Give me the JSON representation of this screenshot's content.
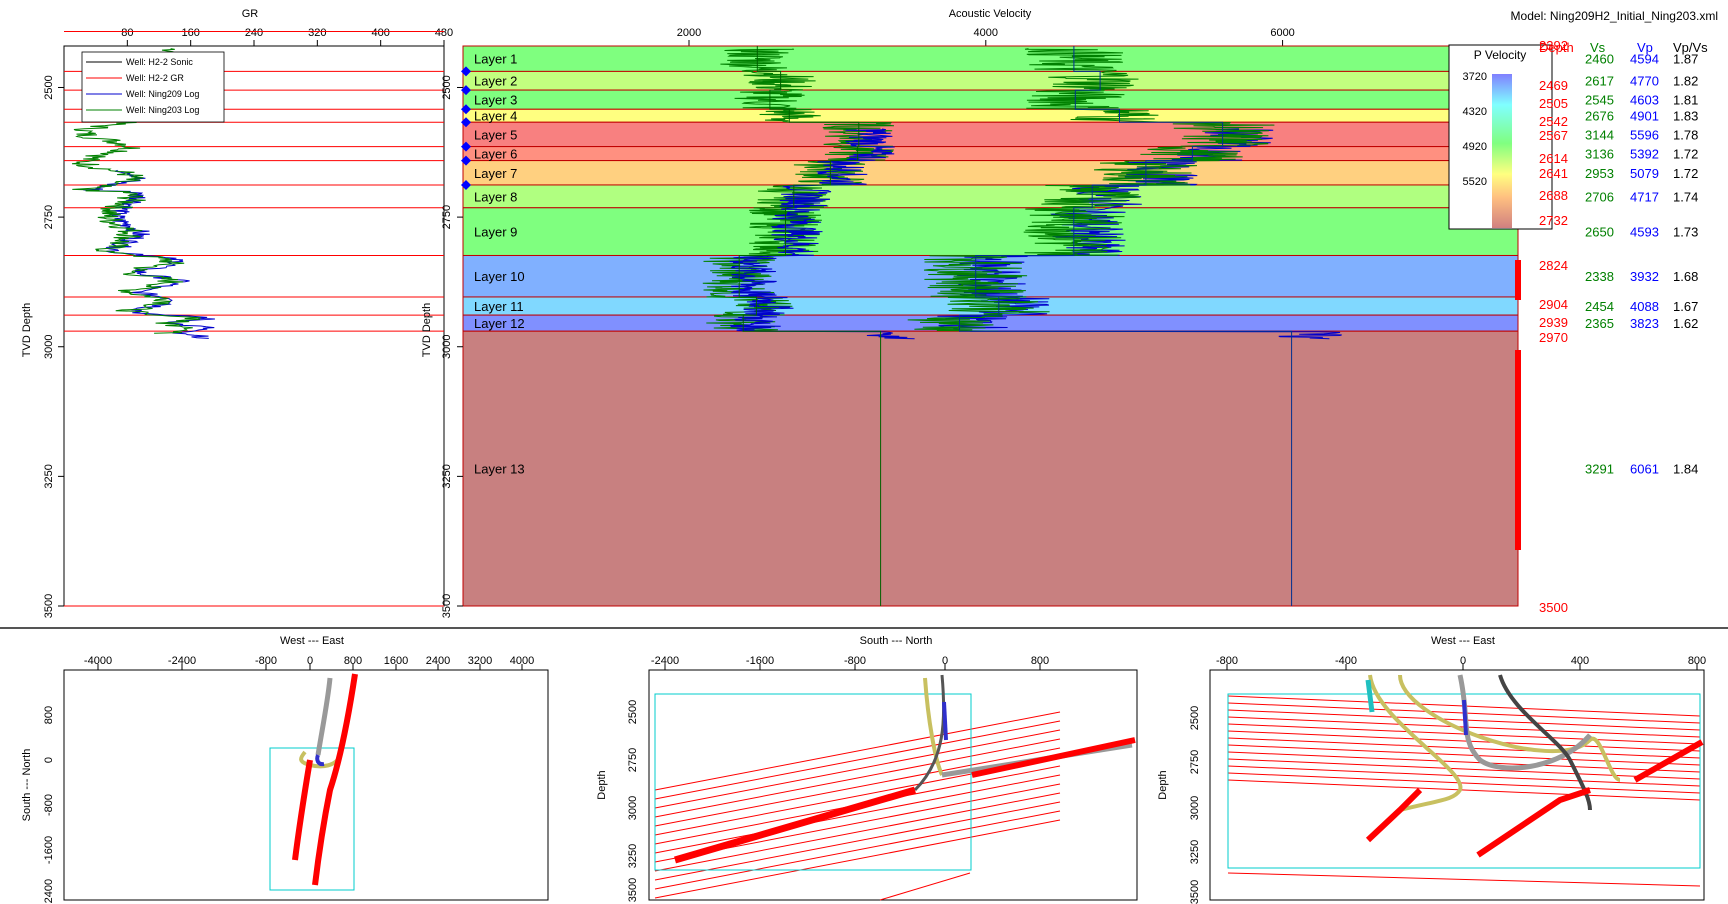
{
  "model_label": "Model: Ning209H2_Initial_Ning203.xml",
  "gr_panel": {
    "title": "GR",
    "x_ticks": [
      80,
      160,
      240,
      320,
      400,
      480
    ],
    "xlim": [
      0,
      480
    ],
    "y_label": "TVD Depth",
    "y_ticks": [
      2500,
      2750,
      3000,
      3250,
      3500
    ],
    "ylim": [
      2420,
      3500
    ],
    "legend": [
      {
        "label": "Well: H2-2 Sonic",
        "color": "#000000"
      },
      {
        "label": "Well: H2-2 GR",
        "color": "#ff0000"
      },
      {
        "label": "Well: Ning209 Log",
        "color": "#0000cc"
      },
      {
        "label": "Well: Ning203 Log",
        "color": "#008000"
      }
    ]
  },
  "velocity_panel": {
    "title": "Acoustic Velocity",
    "x_ticks": [
      2000,
      4000,
      6000
    ],
    "xlim": [
      450,
      7600
    ],
    "y_label": "TVD Depth",
    "y_ticks": [
      2500,
      2750,
      3000,
      3250,
      3500
    ]
  },
  "colorbar": {
    "title": "P Velocity",
    "ticks": [
      "3720",
      "4320",
      "4920",
      "5520"
    ],
    "colors": [
      "#8080ff",
      "#80ffff",
      "#80ff80",
      "#ffff80",
      "#ffc080",
      "#ff8080"
    ]
  },
  "table_headers": {
    "depth": "Depth",
    "vs": "Vs",
    "vp": "Vp",
    "ratio": "Vp/Vs"
  },
  "bottom_depth_label": "3500",
  "chart_data": {
    "type": "table",
    "layers": [
      {
        "name": "Layer 1",
        "top": 2392,
        "bottom": 2469,
        "vs": "2460",
        "vp": "4594",
        "ratio": "1.87",
        "color": "#7fff7f"
      },
      {
        "name": "Layer 2",
        "top": 2469,
        "bottom": 2505,
        "vs": "2617",
        "vp": "4770",
        "ratio": "1.82",
        "color": "#c2ff7f"
      },
      {
        "name": "Layer 3",
        "top": 2505,
        "bottom": 2542,
        "vs": "2545",
        "vp": "4603",
        "ratio": "1.81",
        "color": "#7fff7f"
      },
      {
        "name": "Layer 4",
        "top": 2542,
        "bottom": 2567,
        "vs": "2676",
        "vp": "4901",
        "ratio": "1.83",
        "color": "#ffff80"
      },
      {
        "name": "Layer 5",
        "top": 2567,
        "bottom": 2614,
        "vs": "3144",
        "vp": "5596",
        "ratio": "1.78",
        "color": "#f88080"
      },
      {
        "name": "Layer 6",
        "top": 2614,
        "bottom": 2641,
        "vs": "3136",
        "vp": "5392",
        "ratio": "1.72",
        "color": "#ff9080"
      },
      {
        "name": "Layer 7",
        "top": 2641,
        "bottom": 2688,
        "vs": "2953",
        "vp": "5079",
        "ratio": "1.72",
        "color": "#ffd080"
      },
      {
        "name": "Layer 8",
        "top": 2688,
        "bottom": 2732,
        "vs": "2706",
        "vp": "4717",
        "ratio": "1.74",
        "color": "#b0ff80"
      },
      {
        "name": "Layer 9",
        "top": 2732,
        "bottom": 2824,
        "vs": "2650",
        "vp": "4593",
        "ratio": "1.73",
        "color": "#7fff7f"
      },
      {
        "name": "Layer 10",
        "top": 2824,
        "bottom": 2904,
        "vs": "2338",
        "vp": "3932",
        "ratio": "1.68",
        "color": "#80b0ff"
      },
      {
        "name": "Layer 11",
        "top": 2904,
        "bottom": 2939,
        "vs": "2454",
        "vp": "4088",
        "ratio": "1.67",
        "color": "#80d8ff"
      },
      {
        "name": "Layer 12",
        "top": 2939,
        "bottom": 2970,
        "vs": "2365",
        "vp": "3823",
        "ratio": "1.62",
        "color": "#8090ff"
      },
      {
        "name": "Layer 13",
        "top": 2970,
        "bottom": 3500,
        "vs": "3291",
        "vp": "6061",
        "ratio": "1.84",
        "color": "#c88080"
      }
    ]
  },
  "map_panels": [
    {
      "title": "West --- East",
      "x_ticks": [
        "-4000",
        "-2400",
        "-800",
        "0",
        "800",
        "1600",
        "2400",
        "3200",
        "4000"
      ],
      "y_label": "South --- North",
      "y_ticks": [
        "800",
        "0",
        "-800",
        "-1600",
        "-2400"
      ]
    },
    {
      "title": "South --- North",
      "x_ticks": [
        "-2400",
        "-1600",
        "-800",
        "0",
        "800"
      ],
      "y_label": "Depth",
      "y_ticks": [
        "2500",
        "2750",
        "3000",
        "3250",
        "3500"
      ]
    },
    {
      "title": "West --- East",
      "x_ticks": [
        "-800",
        "-400",
        "0",
        "400",
        "800"
      ],
      "y_label": "Depth",
      "y_ticks": [
        "2500",
        "2750",
        "3000",
        "3250",
        "3500"
      ]
    }
  ]
}
